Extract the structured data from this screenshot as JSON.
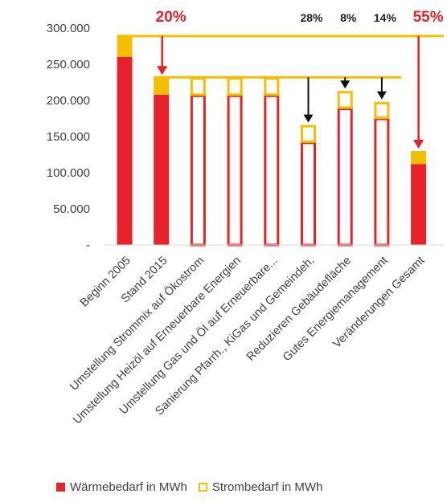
{
  "chart_data": {
    "type": "bar",
    "categories": [
      "Beginn 2005",
      "Stand 2015",
      "Umstellung Strommix auf Ökostrom",
      "Umstellung Heizöl auf Erneuerbare Energien",
      "Umstellung Gas und Öl auf Erneuerbare...",
      "Sanierung Pfarrh., KiGas und Gemeindeh.",
      "Reduzieren Gebäudefläche",
      "Gutes Energiemanagement",
      "Veränderungen Gesamt"
    ],
    "series": [
      {
        "name": "Wärmebedarf in MWh",
        "values": [
          260000,
          208000,
          208000,
          208000,
          208000,
          143000,
          190000,
          176000,
          112000
        ],
        "color": "#e8222a"
      },
      {
        "name": "Strombedarf in MWh",
        "values": [
          29000,
          24000,
          24000,
          24000,
          24000,
          23000,
          23000,
          22000,
          18000
        ],
        "color": "#f5bf00"
      }
    ],
    "bar_style": [
      "solid",
      "solid",
      "outline",
      "outline",
      "outline",
      "outline",
      "outline",
      "outline",
      "solid"
    ],
    "stacked": true,
    "ylim": [
      0,
      300000
    ],
    "yticks": [
      "-",
      "50.000",
      "100.000",
      "150.000",
      "200.000",
      "250.000",
      "300.000"
    ],
    "reference_lines": [
      289000,
      232000
    ],
    "annotations": [
      {
        "text": "20%",
        "category": 1,
        "style": "big"
      },
      {
        "text": "28%",
        "category": 5,
        "style": "small"
      },
      {
        "text": "8%",
        "category": 6,
        "style": "small"
      },
      {
        "text": "14%",
        "category": 7,
        "style": "small"
      },
      {
        "text": "55%",
        "category": 8,
        "style": "big"
      }
    ],
    "legend_position": "bottom"
  }
}
